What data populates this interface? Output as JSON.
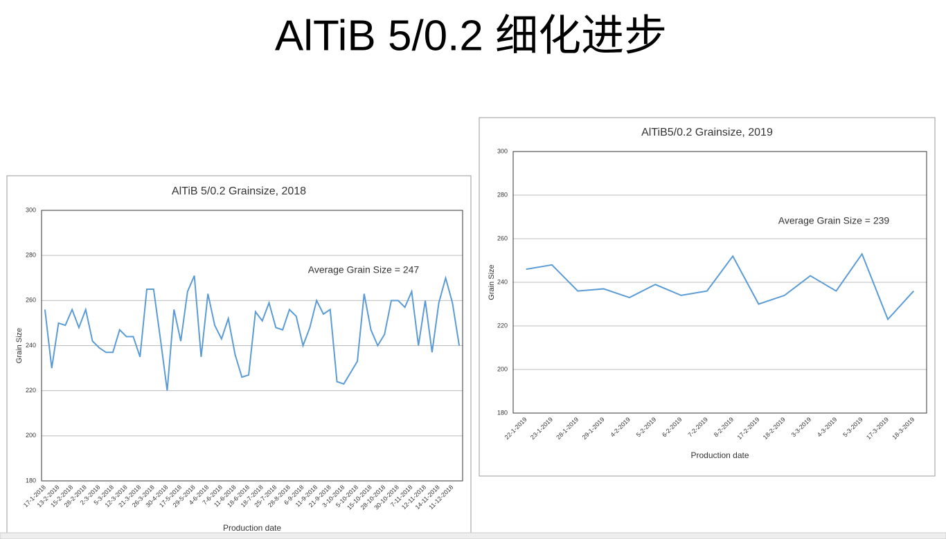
{
  "title": "AlTiB 5/0.2 细化进步",
  "chart_data": [
    {
      "type": "line",
      "title": "AlTiB 5/0.2 Grainsize, 2018",
      "y_label": "Grain Size",
      "x_label": "Production date",
      "annotation": "Average Grain Size = 247",
      "categories": [
        "17-1-2018",
        null,
        "13-2-2018",
        null,
        "15-2-2018",
        null,
        "28-2-2018",
        null,
        "2-3-2018",
        null,
        "5-3-2018",
        null,
        "12-3-2018",
        null,
        "21-3-2018",
        null,
        "26-3-2018",
        null,
        "30-4-2018",
        null,
        "17-5-2018",
        null,
        "29-5-2018",
        null,
        "4-6-2018",
        null,
        "7-6-2018",
        null,
        "11-6-2018",
        null,
        "18-6-2018",
        null,
        "18-7-2018",
        null,
        "25-7-2018",
        null,
        "28-8-2018",
        null,
        "6-9-2018",
        null,
        "11-9-2018",
        null,
        "21-9-2018",
        null,
        "3-10-2018",
        null,
        "5-10-2018",
        null,
        "15-10-2018",
        null,
        "28-10-2018",
        null,
        "30-10-2018",
        null,
        "7-11-2018",
        null,
        "12-11-2018",
        null,
        "14-11-2018",
        null,
        "11-12-2018",
        null
      ],
      "values": [
        256,
        230,
        250,
        249,
        256,
        248,
        256,
        242,
        239,
        237,
        237,
        247,
        244,
        244,
        235,
        265,
        265,
        243,
        220,
        256,
        242,
        264,
        271,
        235,
        263,
        249,
        243,
        252,
        236,
        226,
        227,
        255,
        251,
        259,
        248,
        247,
        256,
        253,
        240,
        248,
        260,
        254,
        256,
        224,
        223,
        228,
        233,
        263,
        247,
        240,
        245,
        260,
        260,
        257,
        264,
        240,
        260,
        237,
        259,
        270,
        259,
        240
      ],
      "color": "#5b9bd5",
      "ylim": [
        180,
        300
      ],
      "yticks": [
        180,
        200,
        220,
        240,
        260,
        280,
        300
      ],
      "grid": true
    },
    {
      "type": "line",
      "title": "AlTiB5/0.2 Grainsize, 2019",
      "y_label": "Grain Size",
      "x_label": "Production date",
      "annotation": "Average Grain Size = 239",
      "categories": [
        "22-1-2019",
        "23-1-2019",
        "28-1-2019",
        "29-1-2019",
        "4-2-2019",
        "5-2-2019",
        "6-2-2019",
        "7-2-2019",
        "8-2-2019",
        "17-2-2019",
        "18-2-2019",
        "3-3-2019",
        "4-3-2019",
        "5-3-2019",
        "17-3-2019",
        "18-3-2019"
      ],
      "values": [
        246,
        248,
        236,
        237,
        233,
        239,
        234,
        236,
        252,
        230,
        234,
        243,
        236,
        253,
        223,
        236
      ],
      "color": "#5b9bd5",
      "ylim": [
        180,
        300
      ],
      "yticks": [
        180,
        200,
        220,
        240,
        260,
        280,
        300
      ],
      "grid": true
    }
  ]
}
